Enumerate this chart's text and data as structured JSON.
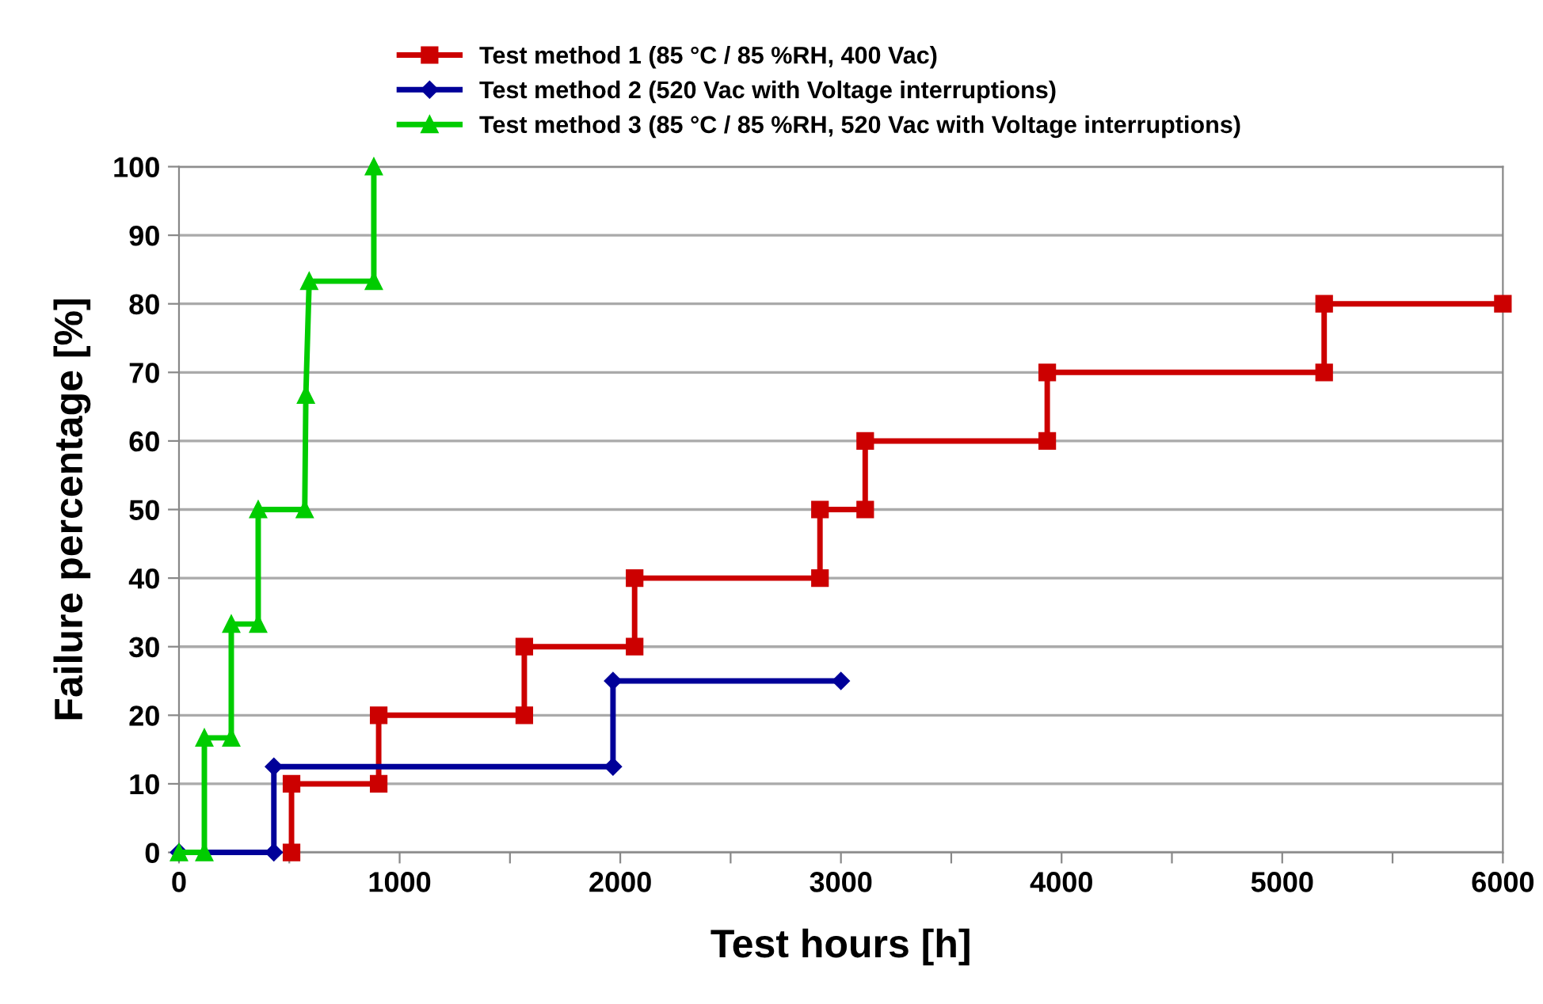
{
  "chart_data": {
    "type": "line",
    "xlabel": "Test hours [h]",
    "ylabel": "Failure percentage [%]",
    "xlim": [
      0,
      6000
    ],
    "ylim": [
      0,
      100
    ],
    "xticks": [
      0,
      {
        "value": 500,
        "label": null
      },
      1000,
      {
        "value": 1500,
        "label": null
      },
      2000,
      {
        "value": 2500,
        "label": null
      },
      3000,
      {
        "value": 3500,
        "label": null
      },
      4000,
      {
        "value": 4500,
        "label": null
      },
      5000,
      {
        "value": 5500,
        "label": null
      },
      6000
    ],
    "yticks": [
      0,
      10,
      20,
      30,
      40,
      50,
      60,
      70,
      80,
      90,
      100
    ],
    "grid": "y",
    "legend": "top",
    "line_style": "solid",
    "series": [
      {
        "name": "Test method 1 (85 °C / 85 %RH, 400 Vac)",
        "color": "#cc0000",
        "marker": "square",
        "x": [
          510,
          510,
          905,
          905,
          1565,
          1565,
          2065,
          2065,
          2905,
          2905,
          3110,
          3110,
          3935,
          3935,
          5190,
          5190,
          6000
        ],
        "values": [
          0,
          10,
          10,
          20,
          20,
          30,
          30,
          40,
          40,
          50,
          50,
          60,
          60,
          70,
          70,
          80,
          80
        ]
      },
      {
        "name": "Test method 2 (520 Vac with Voltage interruptions)",
        "color": "#000099",
        "marker": "diamond",
        "x": [
          0,
          430,
          430,
          1967,
          1967,
          3000
        ],
        "values": [
          0,
          0,
          12.5,
          12.5,
          25,
          25
        ]
      },
      {
        "name": "Test method 3 (85 °C / 85 %RH, 520 Vac with Voltage interruptions)",
        "color": "#00cc00",
        "marker": "triangle",
        "x": [
          0,
          115,
          115,
          237,
          237,
          359,
          359,
          570,
          575,
          590,
          883,
          883
        ],
        "values": [
          0,
          0,
          16.7,
          16.7,
          33.3,
          33.3,
          50,
          50,
          66.7,
          83.3,
          83.3,
          100
        ]
      }
    ]
  }
}
